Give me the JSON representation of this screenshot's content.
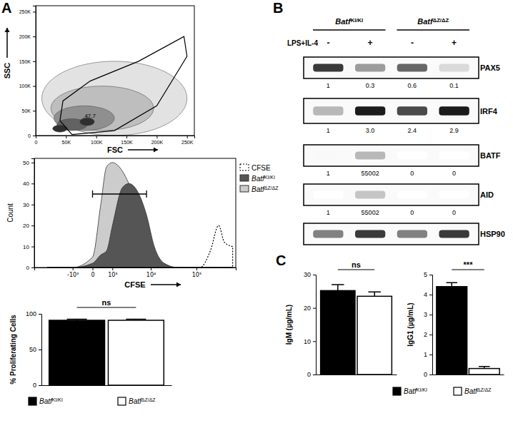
{
  "chart_data": [
    {
      "panel": "A",
      "type": "density",
      "x_label": "FSC",
      "y_label": "SSC",
      "xlim": [
        0,
        262144
      ],
      "ylim": [
        0,
        262144
      ],
      "xticks": [
        0,
        {
          "value": 50000,
          "label": "50K"
        },
        {
          "value": 100000,
          "label": "100K"
        },
        {
          "value": 150000,
          "label": "150K"
        },
        {
          "value": 200000,
          "label": "200K"
        },
        {
          "value": 250000,
          "label": "250K"
        }
      ],
      "yticks": [
        0,
        {
          "value": 50000,
          "label": "50K"
        },
        {
          "value": 100000,
          "label": "100K"
        },
        {
          "value": 150000,
          "label": "150K"
        },
        {
          "value": 200000,
          "label": "200K"
        },
        {
          "value": 250000,
          "label": "250K"
        }
      ],
      "contours": [
        {
          "x": 130000,
          "y": 75000,
          "rx": 120000,
          "ry": 75000,
          "level": 1
        },
        {
          "x": 110000,
          "y": 55000,
          "rx": 85000,
          "ry": 45000,
          "level": 2
        },
        {
          "x": 80000,
          "y": 35000,
          "rx": 50000,
          "ry": 25000,
          "level": 3
        },
        {
          "x": 60000,
          "y": 22000,
          "rx": 25000,
          "ry": 12000,
          "level": 4
        },
        {
          "x": 40000,
          "y": 14000,
          "rx": 12000,
          "ry": 7000,
          "level": 5
        },
        {
          "x": 85000,
          "y": 28000,
          "rx": 12000,
          "ry": 8000,
          "level": 5
        }
      ],
      "gate": {
        "x": [
          60000,
          40000,
          45000,
          90000,
          170000,
          245000,
          250000,
          200000,
          130000
        ],
        "y": [
          2000,
          30000,
          70000,
          110000,
          150000,
          200000,
          160000,
          60000,
          10000
        ],
        "value": 47.7,
        "value_x": 90000,
        "value_y": 36000
      }
    },
    {
      "type": "area",
      "x_label": "CFSE",
      "y_label": "Count",
      "log": "x",
      "xlim": [
        -10000,
        700000
      ],
      "ylim": [
        0,
        52
      ],
      "xticks": [
        {
          "value": -1000,
          "label": "-10³"
        },
        0,
        {
          "value": 1000,
          "label": "10³"
        },
        {
          "value": 10000,
          "label": "10⁴"
        },
        {
          "value": 100000,
          "label": "10⁵"
        }
      ],
      "yticks": [
        0,
        10,
        20,
        30,
        40,
        50
      ],
      "x": [
        -5000,
        -1000,
        0,
        300,
        600,
        1000,
        2000,
        3000,
        5000,
        8000,
        12000,
        20000,
        40000,
        80000,
        120000,
        200000,
        300000,
        400000,
        600000
      ],
      "series": [
        {
          "name": "CFSE",
          "color": "#000000",
          "line_style": "dotted",
          "values": [
            0,
            0,
            0,
            0,
            0,
            0,
            0,
            0,
            0,
            0,
            0,
            0,
            0,
            0,
            0,
            8,
            20,
            12,
            10
          ]
        },
        {
          "name": "BatfKI/KI",
          "color": "#555555",
          "line_style": "solid",
          "values": [
            0,
            0,
            2,
            6,
            8,
            20,
            38,
            40,
            36,
            25,
            10,
            2,
            0,
            0,
            0,
            0,
            0,
            0,
            0
          ]
        },
        {
          "name": "BatfΔZ/ΔZ",
          "color": "#cccccc",
          "line_style": "solid",
          "values": [
            0,
            0,
            5,
            30,
            48,
            50,
            46,
            40,
            30,
            12,
            3,
            0,
            0,
            0,
            0,
            0,
            0,
            0,
            0
          ]
        }
      ],
      "gate": {
        "x": [
          0,
          8000
        ],
        "y": 35
      },
      "legend": "right"
    },
    {
      "type": "bar",
      "y_label": "% Proliferating Cells",
      "categories": [
        null
      ],
      "ylim": [
        0,
        100
      ],
      "yticks": [
        0,
        50,
        100
      ],
      "series": [
        {
          "name": "BatfKI/KI",
          "color": "#000000",
          "values": [
            91
          ],
          "errors": [
            1.5
          ]
        },
        {
          "name": "BatfΔZ/ΔZ",
          "color": "#ffffff",
          "values": [
            91
          ],
          "errors": [
            1.5
          ]
        }
      ],
      "annotation": "ns",
      "legend": "bottom"
    },
    {
      "panel": "B",
      "type": "blot",
      "groups": [
        "BatfKI/KI",
        "BatfΔZ/ΔZ"
      ],
      "treatment_label": "LPS+IL-4",
      "treatment": [
        "-",
        "+",
        "-",
        "+"
      ],
      "rows": [
        {
          "name": "PAX5",
          "band": [
            0.85,
            0.5,
            0.7,
            0.25
          ],
          "values": [
            1,
            0.3,
            0.6,
            0.1
          ]
        },
        {
          "name": "IRF4",
          "band": [
            0.4,
            0.95,
            0.8,
            0.95
          ],
          "values": [
            1,
            3.0,
            2.4,
            2.9
          ],
          "value_labels": [
            "1",
            "3.0",
            "2.4",
            "2.9"
          ]
        },
        {
          "name": "BATF",
          "band": [
            0.05,
            0.4,
            0,
            0
          ],
          "values": [
            1,
            55002,
            0,
            0
          ]
        },
        {
          "name": "AID",
          "band": [
            0,
            0.35,
            0,
            0
          ],
          "values": [
            1,
            55002,
            0,
            0
          ]
        },
        {
          "name": "HSP90",
          "band": [
            0.6,
            0.85,
            0.6,
            0.85
          ]
        }
      ]
    },
    {
      "panel": "C",
      "type": "bar",
      "y_label": "IgM (µg/mL)",
      "categories": [
        null
      ],
      "ylim": [
        0,
        30
      ],
      "yticks": [
        0,
        10,
        20,
        30
      ],
      "series": [
        {
          "color": "#000000",
          "values": [
            25.2
          ],
          "errors": [
            1.8
          ]
        },
        {
          "color": "#ffffff",
          "values": [
            23.5
          ],
          "errors": [
            1.3
          ]
        }
      ],
      "annotation": "ns"
    },
    {
      "type": "bar",
      "y_label": "IgG1 (µg/mL)",
      "categories": [
        null
      ],
      "ylim": [
        0,
        5
      ],
      "yticks": [
        0,
        1,
        2,
        3,
        4,
        5
      ],
      "series": [
        {
          "name": "BatfKI/KI",
          "color": "#000000",
          "values": [
            4.4
          ],
          "errors": [
            0.2
          ]
        },
        {
          "name": "BatfΔZ/ΔZ",
          "color": "#ffffff",
          "values": [
            0.3
          ],
          "errors": [
            0.1
          ]
        }
      ],
      "annotation": "***",
      "legend": "bottom"
    }
  ]
}
